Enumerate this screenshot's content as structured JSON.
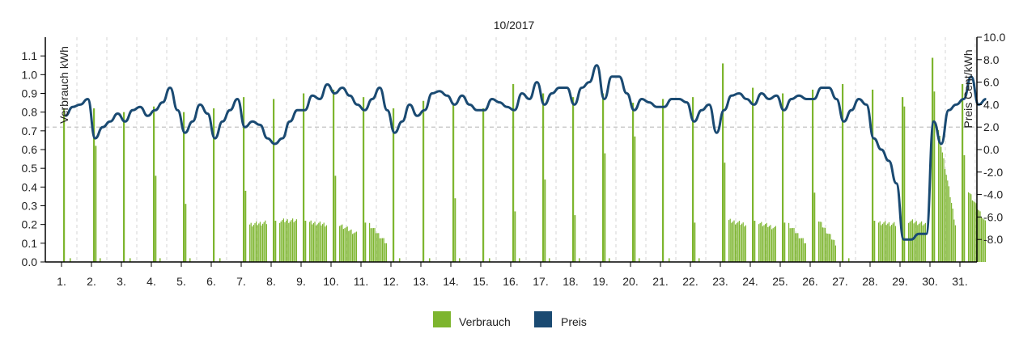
{
  "chart_data": {
    "type": "bar+line",
    "title": "10/2017",
    "ylabel_left": "Verbrauch kWh",
    "ylabel_right": "Preis Cent/kWh",
    "ylim_left": [
      0,
      1.2
    ],
    "ylim_right": [
      -10,
      10
    ],
    "yticks_left": [
      "0.0",
      "0.1",
      "0.2",
      "0.3",
      "0.4",
      "0.5",
      "0.6",
      "0.7",
      "0.8",
      "0.9",
      "1.0",
      "1.1"
    ],
    "yticks_right": [
      "-8.0",
      "-6.0",
      "-4.0",
      "-2.0",
      "0.0",
      "2.0",
      "4.0",
      "6.0",
      "8.0",
      "10.0"
    ],
    "days": [
      "1.",
      "2.",
      "3.",
      "4.",
      "5.",
      "6.",
      "7.",
      "8.",
      "9.",
      "10.",
      "11.",
      "12.",
      "13.",
      "14.",
      "15.",
      "16.",
      "17.",
      "18.",
      "19.",
      "20.",
      "21.",
      "22.",
      "23.",
      "24.",
      "25.",
      "26.",
      "27.",
      "28.",
      "29.",
      "30.",
      "31."
    ],
    "reference_line_price": 2.0,
    "grid": "vertical dashed",
    "legend_position": "bottom-center",
    "colors": {
      "verbrauch": "#7db52e",
      "preis": "#1a4a72",
      "reference": "#cccccc"
    },
    "series": [
      {
        "name": "Verbrauch",
        "kind": "bar",
        "axis": "left",
        "daily_profile": [
          [
            0.82,
            0.02,
            0.02,
            0.02
          ],
          [
            0.82,
            0.62,
            0.02,
            0.02
          ],
          [
            0.8,
            0.02,
            0.02,
            0.02
          ],
          [
            0.83,
            0.46,
            0.02,
            0.02
          ],
          [
            0.8,
            0.31,
            0.02,
            0.02
          ],
          [
            0.82,
            0.02,
            0.02,
            0.02
          ],
          [
            0.88,
            0.38,
            0.2,
            0.21
          ],
          [
            0.87,
            0.22,
            0.22,
            0.22
          ],
          [
            0.9,
            0.22,
            0.21,
            0.2
          ],
          [
            0.92,
            0.46,
            0.2,
            0.15
          ],
          [
            0.88,
            0.21,
            0.2,
            0.1
          ],
          [
            0.82,
            0.02,
            0.02,
            0.02
          ],
          [
            0.86,
            0.02,
            0.02,
            0.02
          ],
          [
            0.84,
            0.34,
            0.02,
            0.02
          ],
          [
            0.82,
            0.02,
            0.02,
            0.02
          ],
          [
            0.95,
            0.27,
            0.02,
            0.02
          ],
          [
            0.9,
            0.44,
            0.02,
            0.02
          ],
          [
            0.88,
            0.25,
            0.02,
            0.02
          ],
          [
            0.9,
            0.58,
            0.02,
            0.02
          ],
          [
            0.85,
            0.67,
            0.02,
            0.02
          ],
          [
            0.87,
            0.02,
            0.02,
            0.02
          ],
          [
            0.88,
            0.21,
            0.02,
            0.02
          ],
          [
            1.06,
            0.53,
            0.22,
            0.2
          ],
          [
            0.93,
            0.22,
            0.21,
            0.18
          ],
          [
            0.9,
            0.21,
            0.2,
            0.1
          ],
          [
            0.92,
            0.37,
            0.22,
            0.1
          ],
          [
            0.95,
            0.02,
            0.02,
            0.02
          ],
          [
            0.92,
            0.22,
            0.21,
            0.2
          ],
          [
            0.88,
            0.83,
            0.22,
            0.2
          ],
          [
            1.09,
            0.91,
            0.7,
            0.2
          ],
          [
            0.95,
            0.57,
            0.38,
            0.21
          ]
        ]
      },
      {
        "name": "Preis",
        "kind": "line",
        "axis": "right",
        "daily_values": [
          [
            3.0,
            3.8,
            4.0,
            4.5
          ],
          [
            1.0,
            2.0,
            2.5,
            3.2
          ],
          [
            2.5,
            3.5,
            3.8,
            3.0
          ],
          [
            3.5,
            4.2,
            5.5,
            3.5
          ],
          [
            1.5,
            2.5,
            4.0,
            3.2
          ],
          [
            1.0,
            2.5,
            3.5,
            4.5
          ],
          [
            2.0,
            2.5,
            2.2,
            1.0
          ],
          [
            0.5,
            1.0,
            2.5,
            3.5
          ],
          [
            3.5,
            4.8,
            4.5,
            5.8
          ],
          [
            5.0,
            5.5,
            4.8,
            4.0
          ],
          [
            3.5,
            4.5,
            5.5,
            3.5
          ],
          [
            1.5,
            2.5,
            4.0,
            3.0
          ],
          [
            3.5,
            5.0,
            5.2,
            4.8
          ],
          [
            4.0,
            4.8,
            4.0,
            3.5
          ],
          [
            3.5,
            4.5,
            4.2,
            3.8
          ],
          [
            3.5,
            5.0,
            4.5,
            6.0
          ],
          [
            4.0,
            5.0,
            5.5,
            5.5
          ],
          [
            4.0,
            5.5,
            6.0,
            7.5
          ],
          [
            4.5,
            6.5,
            6.5,
            5.0
          ],
          [
            3.5,
            4.5,
            4.2,
            3.8
          ],
          [
            3.8,
            4.5,
            4.5,
            4.2
          ],
          [
            2.5,
            3.5,
            4.0,
            1.5
          ],
          [
            3.5,
            4.8,
            5.0,
            4.5
          ],
          [
            4.0,
            5.0,
            4.5,
            4.8
          ],
          [
            3.5,
            4.5,
            4.8,
            4.5
          ],
          [
            4.5,
            5.5,
            5.5,
            4.5
          ],
          [
            2.5,
            3.5,
            4.5,
            4.0
          ],
          [
            1.0,
            0.0,
            -1.0,
            -3.0
          ],
          [
            -8.0,
            -8.0,
            -7.5,
            -7.5
          ],
          [
            2.5,
            0.5,
            3.5,
            4.0
          ],
          [
            4.5,
            6.5,
            4.0,
            4.5
          ]
        ]
      }
    ]
  }
}
